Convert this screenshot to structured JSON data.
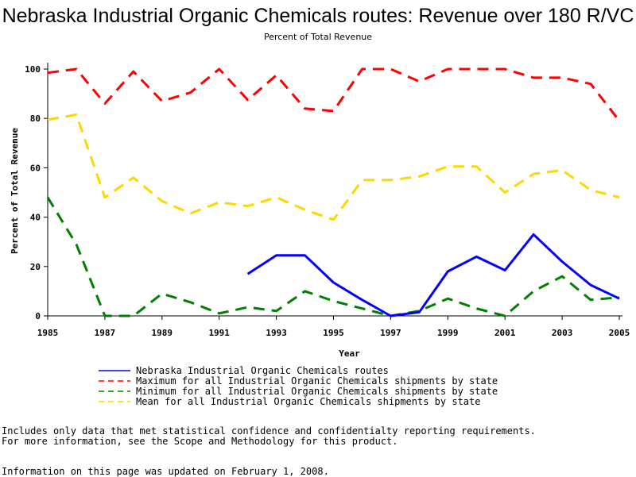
{
  "chart_data": {
    "type": "line",
    "title": "Nebraska Industrial Organic Chemicals routes: Revenue over 180 R/VC",
    "subtitle": "Percent of Total Revenue",
    "xlabel": "Year",
    "ylabel": "Percent of Total Revenue",
    "xlim": [
      1985,
      2005
    ],
    "ylim": [
      0,
      100
    ],
    "x_ticks": [
      "1985",
      "1987",
      "1989",
      "1991",
      "1993",
      "1995",
      "1997",
      "1999",
      "2001",
      "2003",
      "2005"
    ],
    "y_ticks": [
      "0",
      "20",
      "40",
      "60",
      "80",
      "100"
    ],
    "x": [
      1985,
      1986,
      1987,
      1988,
      1989,
      1990,
      1991,
      1992,
      1993,
      1994,
      1995,
      1996,
      1997,
      1998,
      1999,
      2000,
      2001,
      2002,
      2003,
      2004,
      2005
    ],
    "series": [
      {
        "name": "Nebraska Industrial Organic Chemicals routes",
        "color": "#0000ff",
        "style": "solid",
        "values": [
          null,
          null,
          null,
          null,
          null,
          null,
          null,
          17,
          24.5,
          24.5,
          13.5,
          6.5,
          0,
          1.5,
          18,
          24,
          18.5,
          33,
          22,
          12.5,
          7
        ]
      },
      {
        "name": "Maximum for all Industrial Organic Chemicals shipments by state",
        "color": "#ff0000",
        "style": "dashed",
        "values": [
          98.5,
          100,
          86,
          99,
          87,
          90.5,
          100,
          87.5,
          97.5,
          84,
          83,
          100,
          100,
          95,
          100,
          100,
          100,
          96.5,
          96.5,
          94,
          79
        ]
      },
      {
        "name": "Minimum for all Industrial Organic Chemicals shipments by state",
        "color": "#008000",
        "style": "dashed",
        "values": [
          48,
          29,
          0,
          0,
          9,
          5.5,
          1,
          3.5,
          2,
          10,
          6,
          3,
          0,
          2,
          7,
          3,
          0,
          10,
          16,
          6.5,
          7.5
        ]
      },
      {
        "name": "Mean for all Industrial Organic Chemicals shipments by state",
        "color": "#ffd700",
        "style": "dashed",
        "values": [
          79.5,
          81.5,
          48,
          56,
          46.5,
          41.5,
          46,
          44.5,
          48,
          43,
          39,
          55,
          55,
          56.5,
          60.5,
          60.5,
          50,
          57.5,
          59,
          51,
          48
        ]
      }
    ]
  },
  "notes": {
    "line1": "Includes only data that met statistical confidence and confidentialty reporting requirements.",
    "line2": "For more information, see the Scope and Methodology for this product.",
    "updated": "Information on this page was updated on February 1, 2008."
  }
}
